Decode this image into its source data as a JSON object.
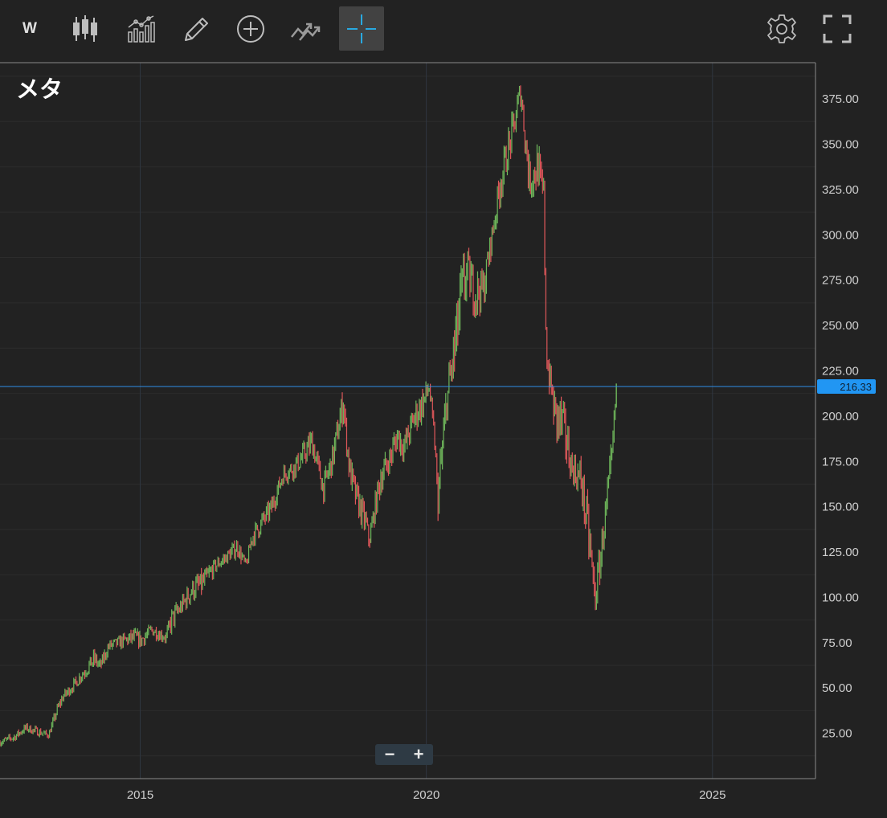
{
  "toolbar": {
    "interval_label": "W",
    "icons": [
      "candlestick-icon",
      "indicators-icon",
      "pencil-icon",
      "add-circle-icon",
      "compare-icon",
      "crosshair-icon",
      "settings-icon",
      "fullscreen-icon"
    ],
    "active_tool": "crosshair-icon"
  },
  "zoom": {
    "out_label": "−",
    "in_label": "+"
  },
  "colors": {
    "background": "#222222",
    "grid": "#2c2c2c",
    "up": "#6db55a",
    "down": "#e0575a",
    "price_line": "#2f8fe8",
    "price_badge": "#2196f3",
    "accent": "#29a9e0"
  },
  "chart_data": {
    "type": "line",
    "title": "メタ",
    "interval": "W",
    "ylim": [
      0,
      395
    ],
    "xlim": [
      2012.55,
      2026.8
    ],
    "ytick_labels": [
      "25.00",
      "50.00",
      "75.00",
      "100.00",
      "125.00",
      "150.00",
      "175.00",
      "200.00",
      "225.00",
      "250.00",
      "275.00",
      "300.00",
      "325.00",
      "350.00",
      "375.00"
    ],
    "yticks": [
      25,
      50,
      75,
      100,
      125,
      150,
      175,
      200,
      225,
      250,
      275,
      300,
      325,
      350,
      375
    ],
    "xtick_labels": [
      "2015",
      "2020",
      "2025"
    ],
    "xticks": [
      2015,
      2020,
      2025
    ],
    "last_price": 216.33,
    "last_price_label": "216.33",
    "series": [
      {
        "x": [
          2012.55,
          2012.8,
          2013.0,
          2013.2,
          2013.4,
          2013.55,
          2013.65,
          2013.85,
          2014.0,
          2014.2,
          2014.3,
          2014.45,
          2014.7,
          2014.9,
          2015.0,
          2015.2,
          2015.45,
          2015.55,
          2015.7,
          2015.9,
          2016.1,
          2016.3,
          2016.5,
          2016.7,
          2016.85,
          2016.95,
          2017.1,
          2017.3,
          2017.5,
          2017.7,
          2017.9,
          2018.0,
          2018.2,
          2018.35,
          2018.55,
          2018.65,
          2018.75,
          2018.95,
          2019.0,
          2019.2,
          2019.35,
          2019.5,
          2019.6,
          2019.8,
          2019.95,
          2020.05,
          2020.15,
          2020.2,
          2020.35,
          2020.5,
          2020.6,
          2020.7,
          2020.85,
          2021.0,
          2021.15,
          2021.3,
          2021.5,
          2021.65,
          2021.8,
          2021.95,
          2022.05,
          2022.1,
          2022.25,
          2022.4,
          2022.55,
          2022.7,
          2022.85,
          2022.95,
          2023.05,
          2023.15,
          2023.25,
          2023.32
        ],
        "y": [
          20,
          23,
          28,
          26,
          24,
          38,
          45,
          52,
          58,
          66,
          62,
          73,
          76,
          78,
          76,
          82,
          78,
          88,
          94,
          104,
          108,
          117,
          122,
          128,
          117,
          133,
          140,
          150,
          168,
          172,
          180,
          186,
          160,
          175,
          208,
          172,
          158,
          140,
          131,
          166,
          175,
          190,
          182,
          200,
          208,
          216,
          185,
          154,
          206,
          238,
          262,
          280,
          268,
          270,
          300,
          330,
          355,
          380,
          330,
          338,
          320,
          232,
          200,
          195,
          170,
          165,
          130,
          98,
          124,
          150,
          178,
          216.33
        ],
        "hi": [
          22,
          26,
          31,
          29,
          27,
          42,
          50,
          56,
          64,
          72,
          67,
          76,
          80,
          84,
          82,
          86,
          82,
          94,
          101,
          112,
          117,
          121,
          127,
          133,
          121,
          138,
          147,
          156,
          173,
          178,
          192,
          199,
          167,
          187,
          218,
          182,
          168,
          150,
          137,
          180,
          186,
          206,
          192,
          212,
          218,
          224,
          192,
          165,
          227,
          272,
          304,
          296,
          285,
          282,
          310,
          340,
          372,
          384,
          350,
          354,
          332,
          240,
          224,
          208,
          186,
          182,
          155,
          111,
          136,
          165,
          196,
          218
        ],
        "lo": [
          17,
          20,
          25,
          23,
          22,
          34,
          42,
          48,
          54,
          60,
          58,
          67,
          71,
          73,
          71,
          77,
          73,
          78,
          89,
          96,
          100,
          111,
          117,
          121,
          112,
          126,
          132,
          142,
          160,
          164,
          174,
          180,
          150,
          167,
          195,
          161,
          146,
          130,
          124,
          156,
          168,
          182,
          174,
          190,
          196,
          208,
          170,
          137,
          196,
          226,
          250,
          261,
          254,
          256,
          290,
          315,
          346,
          362,
          320,
          322,
          292,
          224,
          185,
          170,
          163,
          156,
          118,
          89,
          107,
          140,
          170,
          205
        ]
      }
    ]
  }
}
